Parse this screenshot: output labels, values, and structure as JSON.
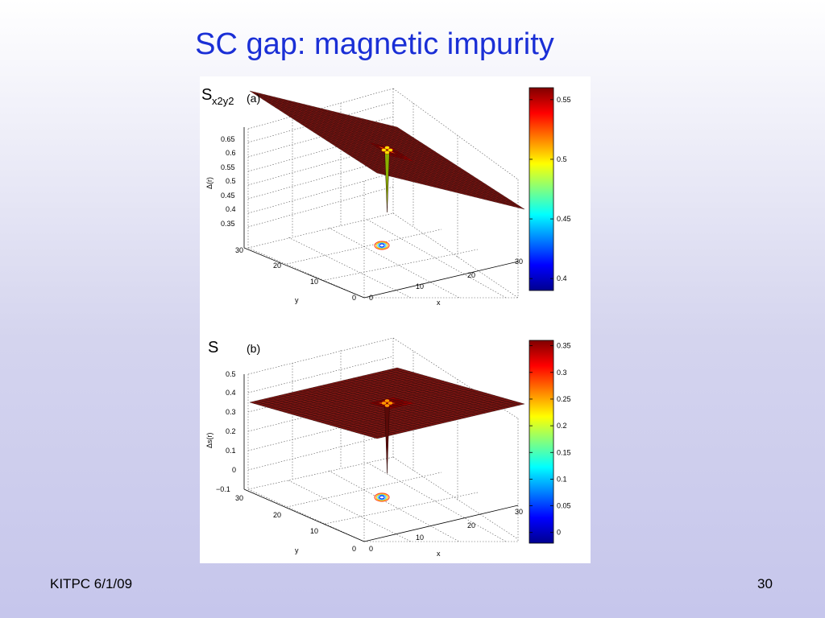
{
  "slide": {
    "title": "SC gap: magnetic impurity",
    "footer_left": "KITPC 6/1/09",
    "page_number": "30"
  },
  "chart_data": [
    {
      "type": "surface",
      "panel_label": "(a)",
      "symbol": "S",
      "symbol_subscript": "x2y2",
      "zlabel": "Δ(r)",
      "xlabel": "x",
      "ylabel": "y",
      "zticks": [
        "0.35",
        "0.4",
        "0.45",
        "0.5",
        "0.55",
        "0.6",
        "0.65"
      ],
      "xticks": [
        "0",
        "10",
        "20",
        "30"
      ],
      "yticks": [
        "0",
        "10",
        "20",
        "30"
      ],
      "colorbar_ticks": [
        "0.4",
        "0.45",
        "0.5",
        "0.55"
      ],
      "colorbar_range": [
        0.39,
        0.56
      ],
      "zlim": [
        0.33,
        0.67
      ],
      "grid_size": [
        31,
        31
      ],
      "background_value": 0.555,
      "impurity_site": [
        15,
        15
      ],
      "impurity_minimum": 0.39,
      "colormap": "jet",
      "contour_projection": true
    },
    {
      "type": "surface",
      "panel_label": "(b)",
      "symbol": "S",
      "zlabel": "Δs(r)",
      "xlabel": "x",
      "ylabel": "y",
      "zticks": [
        "−0.1",
        "0",
        "0.1",
        "0.2",
        "0.3",
        "0.4",
        "0.5"
      ],
      "xticks": [
        "0",
        "10",
        "20",
        "30"
      ],
      "yticks": [
        "0",
        "10",
        "20",
        "30"
      ],
      "colorbar_ticks": [
        "0",
        "0.05",
        "0.1",
        "0.15",
        "0.2",
        "0.25",
        "0.3",
        "0.35"
      ],
      "colorbar_range": [
        -0.02,
        0.36
      ],
      "zlim": [
        -0.12,
        0.52
      ],
      "grid_size": [
        31,
        31
      ],
      "background_value": 0.35,
      "impurity_site": [
        15,
        15
      ],
      "impurity_minimum": -0.02,
      "colormap": "jet",
      "contour_projection": true
    }
  ]
}
